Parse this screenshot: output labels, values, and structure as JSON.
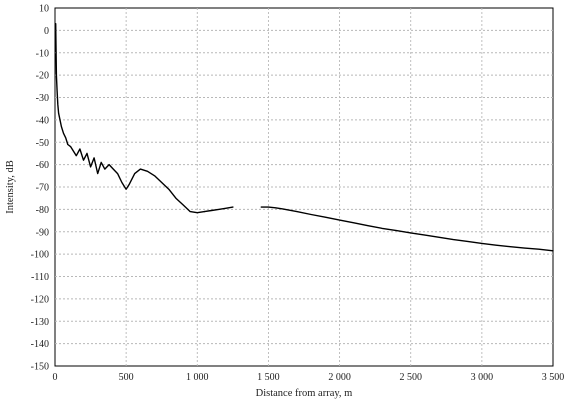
{
  "chart_data": {
    "type": "line",
    "title": "",
    "xlabel": "Distance from array, m",
    "ylabel": "Intensity, dB",
    "xlim": [
      0,
      3500
    ],
    "ylim": [
      -150,
      10
    ],
    "x_ticks": [
      0,
      500,
      1000,
      1500,
      2000,
      2500,
      3000,
      3500
    ],
    "x_tick_labels": [
      "0",
      "500",
      "1 000",
      "1 500",
      "2 000",
      "2 500",
      "3 000",
      "3 500"
    ],
    "y_ticks": [
      10,
      0,
      -10,
      -20,
      -30,
      -40,
      -50,
      -60,
      -70,
      -80,
      -90,
      -100,
      -110,
      -120,
      -130,
      -140,
      -150
    ],
    "y_tick_labels": [
      "10",
      "0",
      "-10",
      "-20",
      "-30",
      "-40",
      "-50",
      "-60",
      "-70",
      "-80",
      "-90",
      "-100",
      "-110",
      "-120",
      "-130",
      "-140",
      "-150"
    ],
    "grid": true,
    "series": [
      {
        "color": "#000000",
        "segments": [
          {
            "x": [
              5,
              10,
              15,
              20,
              25,
              35,
              45,
              60,
              75,
              90,
              110,
              130,
              150,
              175,
              200,
              225,
              250,
              275,
              300,
              325,
              350,
              380,
              410,
              440,
              470,
              500,
              520,
              560,
              600,
              650,
              700,
              750,
              800,
              850,
              900,
              950,
              1000,
              1050
            ],
            "y": [
              3,
              -20,
              -27,
              -33,
              -37,
              -40,
              -43,
              -46,
              -48,
              -51,
              -52,
              -54,
              -56,
              -53,
              -58,
              -55,
              -61,
              -57,
              -64,
              -59,
              -62,
              -60,
              -62,
              -64,
              -68,
              -71,
              -69,
              -64,
              -62,
              -63,
              -65,
              -68,
              -71,
              -75,
              -78,
              -81,
              -81.5,
              -81
            ]
          },
          {
            "x": [
              1050,
              1100,
              1150,
              1200,
              1250
            ],
            "y": [
              -81,
              -80.5,
              -80,
              -79.5,
              -79
            ]
          },
          {
            "x": [
              1450,
              1500,
              1550,
              1600,
              1700,
              1800,
              1900,
              2000,
              2100,
              2200,
              2300,
              2400,
              2500,
              2600,
              2700,
              2800,
              2900,
              3000,
              3100,
              3200,
              3300,
              3400,
              3500
            ],
            "y": [
              -79,
              -79,
              -79.3,
              -79.8,
              -81,
              -82.3,
              -83.5,
              -84.8,
              -86,
              -87.3,
              -88.5,
              -89.5,
              -90.5,
              -91.5,
              -92.5,
              -93.5,
              -94.3,
              -95.2,
              -96,
              -96.7,
              -97.3,
              -97.8,
              -98.5
            ]
          }
        ]
      }
    ]
  }
}
